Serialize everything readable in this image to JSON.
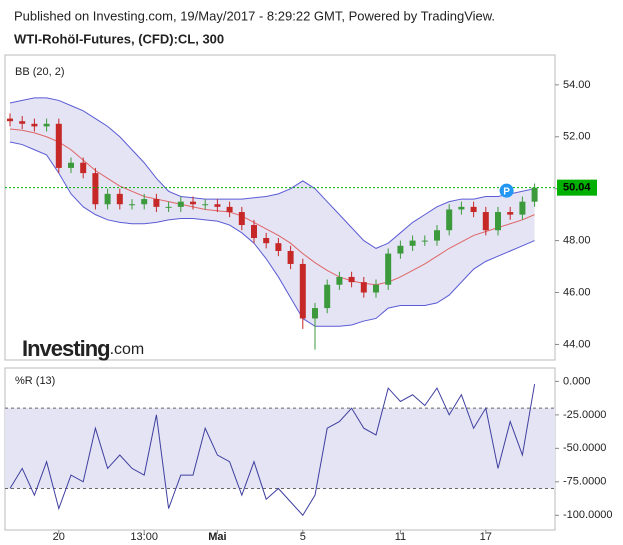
{
  "header": {
    "line1": "Published on Investing.com, 19/May/2017 - 8:29:22 GMT, Powered by TradingView.",
    "line2": "WTI-Rohöl-Futures, (CFD):CL, 300"
  },
  "logo": {
    "brand": "Investing",
    "suffix": ".com"
  },
  "chart_data": [
    {
      "type": "candlestick",
      "title": "BB (20, 2)",
      "categories": [
        null,
        null,
        null,
        null,
        "20",
        null,
        null,
        null,
        null,
        null,
        null,
        "13:00",
        null,
        null,
        null,
        null,
        null,
        "Mai",
        null,
        null,
        null,
        null,
        null,
        null,
        "5",
        null,
        null,
        null,
        null,
        null,
        null,
        null,
        "11",
        null,
        null,
        null,
        null,
        null,
        null,
        "17",
        null,
        null,
        null,
        null
      ],
      "open": [
        52.7,
        52.6,
        52.5,
        52.4,
        52.5,
        50.8,
        51.0,
        50.6,
        49.4,
        49.8,
        49.4,
        49.4,
        49.6,
        49.3,
        49.3,
        49.5,
        49.4,
        49.4,
        49.3,
        49.1,
        48.6,
        48.1,
        47.9,
        47.6,
        47.1,
        45.0,
        45.4,
        46.3,
        46.6,
        46.4,
        46.0,
        46.3,
        47.5,
        47.8,
        48.0,
        48.0,
        48.4,
        49.2,
        49.3,
        49.1,
        48.4,
        49.1,
        49.0,
        49.5
      ],
      "high": [
        52.9,
        52.8,
        52.7,
        52.7,
        52.7,
        51.2,
        51.2,
        50.8,
        50.0,
        50.0,
        49.6,
        49.8,
        49.8,
        49.5,
        49.7,
        49.7,
        49.6,
        49.6,
        49.5,
        49.3,
        48.8,
        48.3,
        48.1,
        47.8,
        47.3,
        45.6,
        46.5,
        46.8,
        46.8,
        46.6,
        46.5,
        47.7,
        48.0,
        48.2,
        48.2,
        48.6,
        49.4,
        49.5,
        49.5,
        49.3,
        49.3,
        49.3,
        49.7,
        50.2
      ],
      "low": [
        52.4,
        52.3,
        52.2,
        52.2,
        50.6,
        50.6,
        50.4,
        49.2,
        49.2,
        49.2,
        49.2,
        49.2,
        49.1,
        49.1,
        49.1,
        49.2,
        49.2,
        49.1,
        48.9,
        48.4,
        47.9,
        47.7,
        47.4,
        46.9,
        44.6,
        43.8,
        45.2,
        46.1,
        46.2,
        45.8,
        45.8,
        46.1,
        47.3,
        47.6,
        47.8,
        47.8,
        48.2,
        49.0,
        48.9,
        48.2,
        48.2,
        48.8,
        48.8,
        49.3
      ],
      "close": [
        52.6,
        52.5,
        52.4,
        52.5,
        50.8,
        51.0,
        50.6,
        49.4,
        49.8,
        49.4,
        49.4,
        49.6,
        49.3,
        49.3,
        49.5,
        49.4,
        49.4,
        49.3,
        49.1,
        48.6,
        48.1,
        47.9,
        47.6,
        47.1,
        45.0,
        45.4,
        46.3,
        46.6,
        46.4,
        46.0,
        46.3,
        47.5,
        47.8,
        48.0,
        48.0,
        48.4,
        49.2,
        49.3,
        49.1,
        48.4,
        49.1,
        49.0,
        49.5,
        50.04
      ],
      "bands": {
        "upper": [
          53.3,
          53.4,
          53.5,
          53.5,
          53.4,
          53.2,
          53.0,
          52.7,
          52.4,
          52.0,
          51.5,
          51.0,
          50.4,
          49.9,
          49.7,
          49.65,
          49.6,
          49.6,
          49.6,
          49.6,
          49.65,
          49.7,
          49.8,
          50.0,
          50.3,
          50.0,
          49.5,
          49.0,
          48.5,
          48.0,
          47.7,
          47.9,
          48.3,
          48.7,
          49.0,
          49.3,
          49.5,
          49.6,
          49.6,
          49.7,
          49.7,
          49.8,
          49.9,
          50.0
        ],
        "middle": [
          52.3,
          52.25,
          52.15,
          52.0,
          51.8,
          51.5,
          51.1,
          50.7,
          50.4,
          50.1,
          49.9,
          49.7,
          49.6,
          49.5,
          49.4,
          49.3,
          49.2,
          49.15,
          49.1,
          48.95,
          48.7,
          48.45,
          48.2,
          47.9,
          47.5,
          47.15,
          46.85,
          46.6,
          46.45,
          46.35,
          46.3,
          46.4,
          46.6,
          46.85,
          47.1,
          47.4,
          47.7,
          47.95,
          48.2,
          48.35,
          48.5,
          48.65,
          48.8,
          49.0
        ],
        "lower": [
          51.8,
          51.7,
          51.5,
          51.3,
          50.6,
          49.8,
          49.3,
          49.0,
          48.8,
          48.7,
          48.65,
          48.65,
          48.7,
          48.8,
          48.85,
          48.85,
          48.8,
          48.75,
          48.6,
          48.3,
          47.9,
          47.3,
          46.6,
          45.8,
          45.0,
          44.7,
          44.7,
          44.7,
          44.75,
          44.9,
          45.0,
          45.4,
          45.5,
          45.5,
          45.5,
          45.6,
          45.9,
          46.4,
          46.9,
          47.2,
          47.4,
          47.6,
          47.8,
          48.0
        ]
      },
      "band_color": "#5b5bd6",
      "band_fill": "#e4e4f4",
      "middle_color": "#e06666",
      "up_color": "#3c9a3c",
      "down_color": "#c62828",
      "last_price": 50.04,
      "last_color": "#00b000",
      "badge": "P",
      "badge_color": "#2196f3",
      "ylim": [
        43.4,
        55.15
      ],
      "yticks": [
        {
          "value": 44,
          "label": "44.00"
        },
        {
          "value": 46,
          "label": "46.00"
        },
        {
          "value": 48,
          "label": "48.00"
        },
        {
          "value": 50,
          "label": "50.00"
        },
        {
          "value": 52,
          "label": "52.00"
        },
        {
          "value": 54,
          "label": "54.00"
        }
      ]
    },
    {
      "type": "line",
      "title": "%R (13)",
      "values": [
        -80,
        -65,
        -85,
        -60,
        -95,
        -70,
        -75,
        -35,
        -65,
        -55,
        -65,
        -70,
        -25,
        -95,
        -70,
        -70,
        -35,
        -55,
        -60,
        -85,
        -60,
        -88,
        -80,
        -90,
        -100,
        -85,
        -35,
        -30,
        -20,
        -35,
        -40,
        -5,
        -15,
        -10,
        -18,
        -5,
        -25,
        -10,
        -35,
        -20,
        -65,
        -30,
        -55,
        -2
      ],
      "color": "#3f3fa0",
      "levels": [
        -20,
        -80
      ],
      "level_fill": "#e4e4f4",
      "ylim": [
        -111,
        10
      ],
      "yticks": [
        {
          "value": 0,
          "label": "0.000"
        },
        {
          "value": -25,
          "label": "-25.0000"
        },
        {
          "value": -50,
          "label": "-50.0000"
        },
        {
          "value": -75,
          "label": "-75.0000"
        },
        {
          "value": -100,
          "label": "-100.0000"
        }
      ]
    }
  ]
}
